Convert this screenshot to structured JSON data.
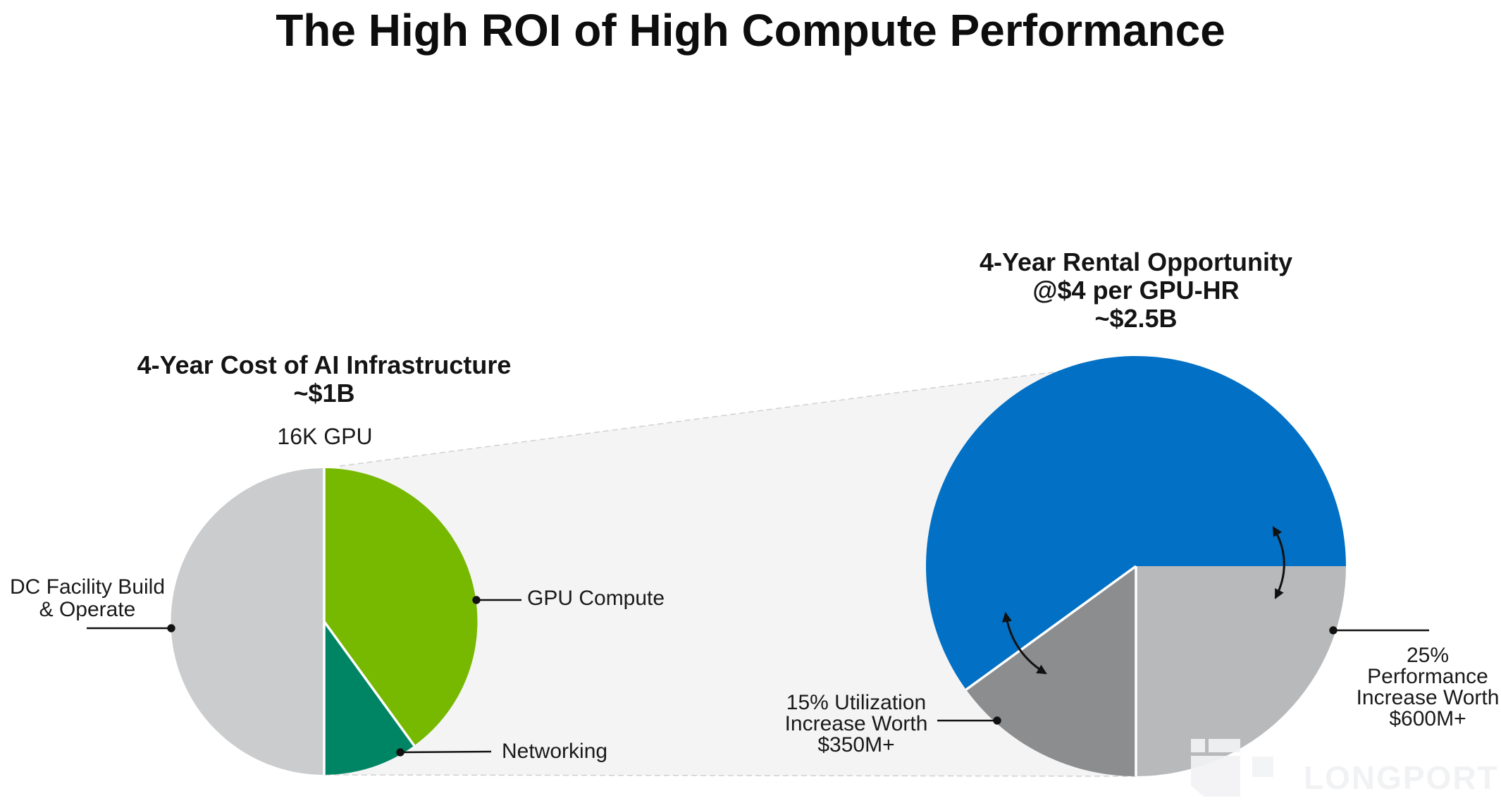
{
  "title": "The High ROI of High Compute Performance",
  "watermark": {
    "text": "LONGPORT"
  },
  "chart_data": [
    {
      "type": "pie",
      "title": "4-Year Cost of AI Infrastructure\n~$1B",
      "annotation": "16K GPU",
      "total_label": "~$1B",
      "slices": [
        {
          "label": "GPU Compute",
          "value": 40,
          "color": "#76b900"
        },
        {
          "label": "Networking",
          "value": 10,
          "color": "#008564"
        },
        {
          "label": "DC Facility Build\n& Operate",
          "value": 50,
          "color": "#cbcccd"
        }
      ]
    },
    {
      "type": "pie",
      "title": "4-Year Rental Opportunity\n@$4 per GPU-HR\n~$2.5B",
      "total_label": "~$2.5B",
      "slices": [
        {
          "label": "25%\nPerformance\nIncrease Worth\n$600M+",
          "value": 25,
          "color": "#b7b9bb"
        },
        {
          "label": "15% Utilization\nIncrease Worth\n$350M+",
          "value": 15,
          "color": "#8c8d8e"
        },
        {
          "label": "4-Year Rental Opportunity @$4 per GPU-HR",
          "value": 60,
          "color": "#0270c4"
        }
      ]
    }
  ]
}
